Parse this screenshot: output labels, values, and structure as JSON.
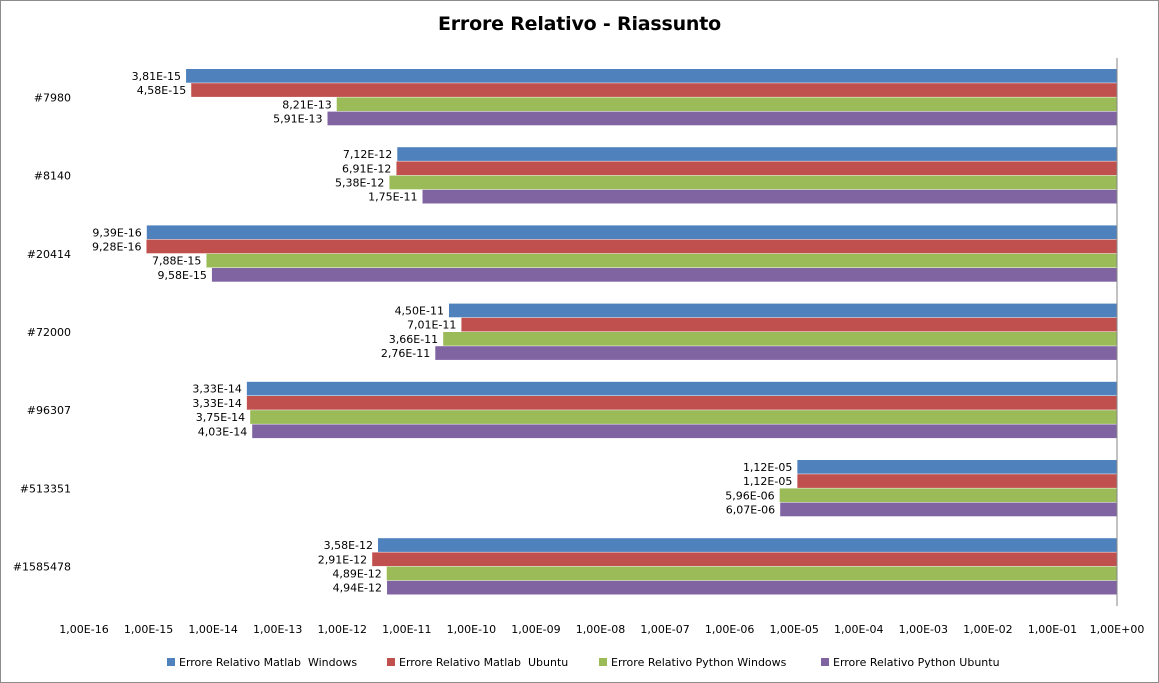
{
  "chart_data": {
    "type": "bar",
    "orientation": "horizontal",
    "title": "Errore Relativo - Riassunto",
    "scale": "log",
    "xlim": [
      1e-16,
      1
    ],
    "x_tick_labels": [
      "1,00E-16",
      "1,00E-15",
      "1,00E-14",
      "1,00E-13",
      "1,00E-12",
      "1,00E-11",
      "1,00E-10",
      "1,00E-09",
      "1,00E-08",
      "1,00E-07",
      "1,00E-06",
      "1,00E-05",
      "1,00E-04",
      "1,00E-03",
      "1,00E-02",
      "1,00E-01",
      "1,00E+00"
    ],
    "categories": [
      "#7980",
      "#8140",
      "#20414",
      "#72000",
      "#96307",
      "#513351",
      "#1585478"
    ],
    "series": [
      {
        "name": "Errore Relativo Matlab  Windows",
        "color": "#4f81bd",
        "values": [
          3.81e-15,
          7.12e-12,
          9.39e-16,
          4.5e-11,
          3.33e-14,
          1.12e-05,
          3.58e-12
        ],
        "labels": [
          "3,81E-15",
          "7,12E-12",
          "9,39E-16",
          "4,50E-11",
          "3,33E-14",
          "1,12E-05",
          "3,58E-12"
        ]
      },
      {
        "name": "Errore Relativo Matlab  Ubuntu",
        "color": "#c0504d",
        "values": [
          4.58e-15,
          6.91e-12,
          9.28e-16,
          7.01e-11,
          3.33e-14,
          1.12e-05,
          2.91e-12
        ],
        "labels": [
          "4,58E-15",
          "6,91E-12",
          "9,28E-16",
          "7,01E-11",
          "3,33E-14",
          "1,12E-05",
          "2,91E-12"
        ]
      },
      {
        "name": "Errore Relativo Python Windows",
        "color": "#9bbb59",
        "values": [
          8.21e-13,
          5.38e-12,
          7.88e-15,
          3.66e-11,
          3.75e-14,
          5.96e-06,
          4.89e-12
        ],
        "labels": [
          "8,21E-13",
          "5,38E-12",
          "7,88E-15",
          "3,66E-11",
          "3,75E-14",
          "5,96E-06",
          "4,89E-12"
        ]
      },
      {
        "name": "Errore Relativo Python Ubuntu",
        "color": "#8064a2",
        "values": [
          5.91e-13,
          1.75e-11,
          9.58e-15,
          2.76e-11,
          4.03e-14,
          6.07e-06,
          4.94e-12
        ],
        "labels": [
          "5,91E-13",
          "1,75E-11",
          "9,58E-15",
          "2,76E-11",
          "4,03E-14",
          "6,07E-06",
          "4,94E-12"
        ]
      }
    ],
    "legend_position": "bottom",
    "grid": false
  }
}
